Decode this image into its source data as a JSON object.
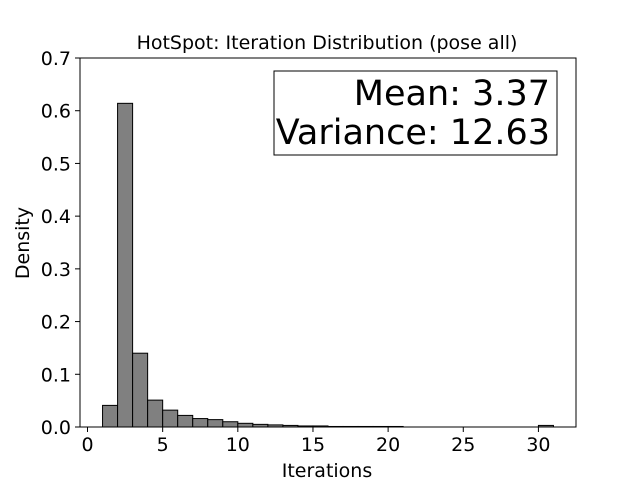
{
  "chart_data": {
    "type": "bar",
    "title": "HotSpot: Iteration Distribution (pose all)",
    "xlabel": "Iterations",
    "ylabel": "Density",
    "xlim": [
      -0.5,
      32.5
    ],
    "ylim": [
      0,
      0.7
    ],
    "xticks": [
      0,
      5,
      10,
      15,
      20,
      25,
      30
    ],
    "yticks": [
      0.0,
      0.1,
      0.2,
      0.3,
      0.4,
      0.5,
      0.6,
      0.7
    ],
    "xtick_labels": [
      "0",
      "5",
      "10",
      "15",
      "20",
      "25",
      "30"
    ],
    "ytick_labels": [
      "0.0",
      "0.1",
      "0.2",
      "0.3",
      "0.4",
      "0.5",
      "0.6",
      "0.7"
    ],
    "bin_width": 1,
    "bins": [
      {
        "x0": 1,
        "value": 0.041
      },
      {
        "x0": 2,
        "value": 0.614
      },
      {
        "x0": 3,
        "value": 0.14
      },
      {
        "x0": 4,
        "value": 0.051
      },
      {
        "x0": 5,
        "value": 0.032
      },
      {
        "x0": 6,
        "value": 0.022
      },
      {
        "x0": 7,
        "value": 0.016
      },
      {
        "x0": 8,
        "value": 0.014
      },
      {
        "x0": 9,
        "value": 0.01
      },
      {
        "x0": 10,
        "value": 0.007
      },
      {
        "x0": 11,
        "value": 0.005
      },
      {
        "x0": 12,
        "value": 0.004
      },
      {
        "x0": 13,
        "value": 0.003
      },
      {
        "x0": 14,
        "value": 0.002
      },
      {
        "x0": 15,
        "value": 0.002
      },
      {
        "x0": 16,
        "value": 0.001
      },
      {
        "x0": 17,
        "value": 0.001
      },
      {
        "x0": 18,
        "value": 0.001
      },
      {
        "x0": 19,
        "value": 0.001
      },
      {
        "x0": 20,
        "value": 0.001
      },
      {
        "x0": 30,
        "value": 0.003
      }
    ],
    "bar_color": "#808080",
    "edge_color": "#000000",
    "stats_box": {
      "line1": "Mean: 3.37",
      "line2": "Variance: 12.63",
      "placement": "top-right"
    },
    "grid": false
  }
}
